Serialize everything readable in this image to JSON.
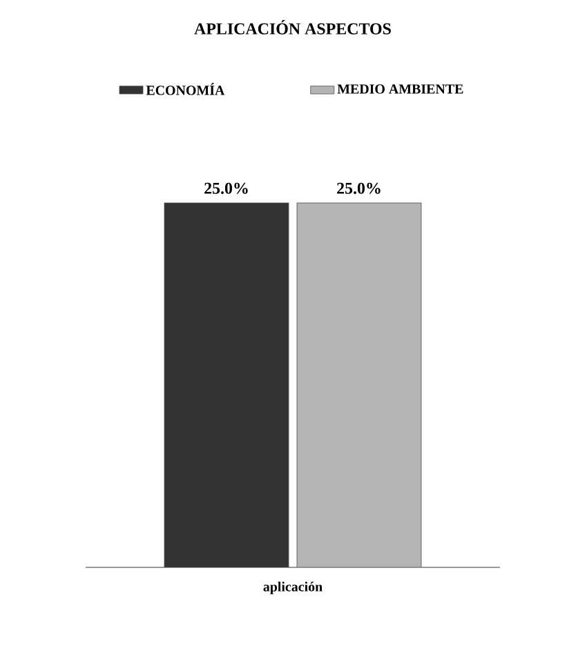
{
  "chart_data": {
    "type": "bar",
    "title": "APLICACIÓN ASPECTOS",
    "xlabel": "aplicación",
    "categories": [
      null
    ],
    "series": [
      {
        "name": "ECONOMÍA",
        "color": "#333333",
        "values": [
          25
        ],
        "value_labels": [
          "25.0%"
        ]
      },
      {
        "name": "MEDIO AMBIENTE",
        "color": "#b4b4b4",
        "values": [
          25
        ],
        "value_labels": [
          "25.0%"
        ]
      }
    ],
    "legend": "top"
  }
}
